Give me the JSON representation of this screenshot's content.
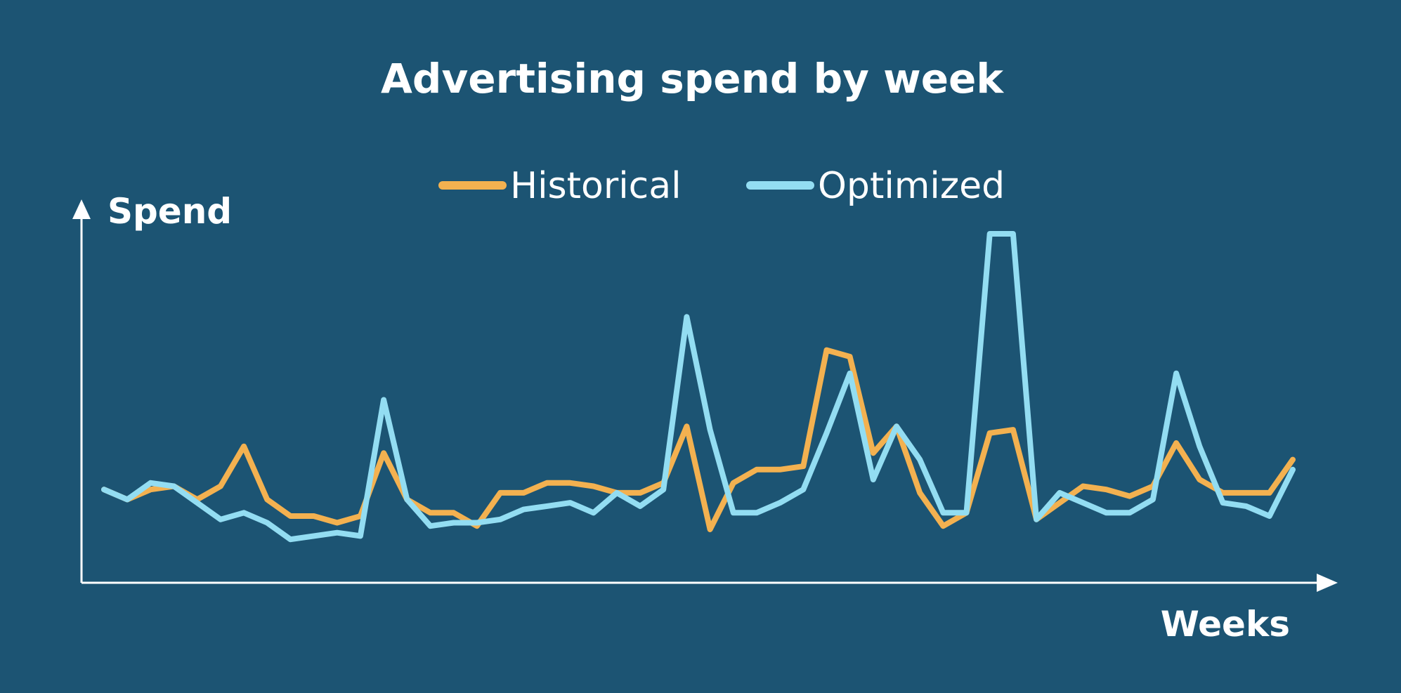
{
  "chart_data": {
    "type": "line",
    "title": "Advertising spend by week",
    "xlabel": "Weeks",
    "ylabel": "Spend",
    "legend_position": "top-center",
    "grid": false,
    "y_axis_ticks_shown": false,
    "x_axis_ticks_shown": false,
    "ylim": [
      0,
      100
    ],
    "x": [
      1,
      2,
      3,
      4,
      5,
      6,
      7,
      8,
      9,
      10,
      11,
      12,
      13,
      14,
      15,
      16,
      17,
      18,
      19,
      20,
      21,
      22,
      23,
      24,
      25,
      26,
      27,
      28,
      29,
      30,
      31,
      32,
      33,
      34,
      35,
      36,
      37,
      38,
      39,
      40,
      41,
      42,
      43,
      44,
      45,
      46,
      47,
      48,
      49,
      50,
      51,
      52
    ],
    "series": [
      {
        "name": "Historical",
        "color": "#f3b150",
        "values": [
          23,
          20,
          23,
          24,
          20,
          24,
          36,
          20,
          15,
          15,
          13,
          15,
          34,
          20,
          16,
          16,
          12,
          22,
          22,
          25,
          25,
          24,
          22,
          22,
          25,
          42,
          11,
          25,
          29,
          29,
          30,
          65,
          63,
          34,
          42,
          22,
          12,
          16,
          40,
          41,
          14,
          19,
          24,
          23,
          21,
          24,
          37,
          26,
          22,
          22,
          22,
          32
        ]
      },
      {
        "name": "Optimized",
        "color": "#93ddf2",
        "values": [
          23,
          20,
          25,
          24,
          19,
          14,
          16,
          13,
          8,
          9,
          10,
          9,
          50,
          20,
          12,
          13,
          13,
          14,
          17,
          18,
          19,
          16,
          22,
          18,
          23,
          75,
          41,
          16,
          16,
          19,
          23,
          40,
          58,
          26,
          42,
          32,
          16,
          16,
          100,
          100,
          14,
          22,
          19,
          16,
          16,
          20,
          58,
          36,
          19,
          18,
          15,
          29
        ]
      }
    ]
  }
}
